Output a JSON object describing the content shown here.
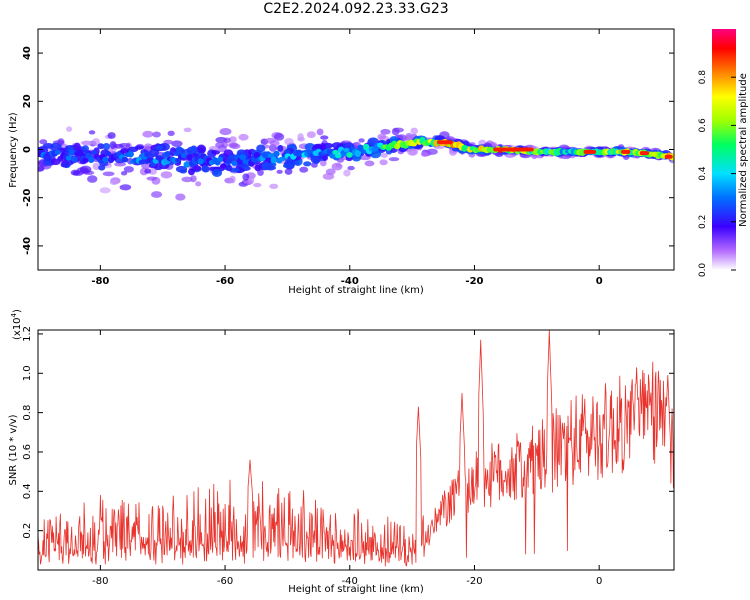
{
  "title": "C2E2.2024.092.23.33.G23",
  "colorbar": {
    "label": "Normalized spectral amplitude",
    "ticks": [
      "0.0",
      "0.2",
      "0.4",
      "0.6",
      "0.8"
    ],
    "range": [
      0,
      1
    ]
  },
  "chart_data": [
    {
      "type": "heatmap",
      "title": "",
      "xlabel": "Height of straight line (km)",
      "ylabel": "Frequency (Hz)",
      "xlim": [
        -90,
        12
      ],
      "ylim": [
        -50,
        50
      ],
      "x_ticks": [
        -80,
        -60,
        -40,
        -20,
        0
      ],
      "y_ticks": [
        -40,
        -20,
        0,
        20,
        40
      ],
      "ridge": {
        "x": [
          -90,
          -80,
          -70,
          -60,
          -50,
          -40,
          -35,
          -30,
          -25,
          -20,
          -15,
          -10,
          -5,
          0,
          5,
          12
        ],
        "y": [
          -2,
          -3,
          -4,
          -5,
          -3,
          -1,
          1,
          3,
          3,
          0,
          0,
          -1,
          -1,
          -1,
          -1,
          -3
        ],
        "spread_hz": [
          6,
          7,
          8,
          8,
          6,
          5,
          4,
          3,
          2,
          2,
          1,
          1,
          1,
          1,
          1,
          1
        ],
        "amplitude": [
          0.3,
          0.3,
          0.35,
          0.3,
          0.4,
          0.45,
          0.55,
          0.75,
          0.85,
          0.7,
          0.95,
          0.6,
          0.55,
          0.7,
          0.8,
          0.85
        ]
      }
    },
    {
      "type": "line",
      "title": "",
      "xlabel": "Height of straight line (km)",
      "ylabel": "SNR (10 * v/v)",
      "scale_label": "(x10",
      "scale_exp": "4",
      "scale_close": ")",
      "xlim": [
        -90,
        12
      ],
      "ylim": [
        0,
        1.22
      ],
      "x_ticks": [
        -80,
        -60,
        -40,
        -20,
        0
      ],
      "y_ticks": [
        "0.2",
        "0.4",
        "0.6",
        "0.8",
        "1.0",
        "1.2"
      ],
      "series_color": "#e8322b",
      "envelope": {
        "x": [
          -90,
          -80,
          -70,
          -60,
          -50,
          -40,
          -32,
          -29,
          -27,
          -25,
          -22,
          -20,
          -15,
          -10,
          -5,
          0,
          5,
          10,
          12
        ],
        "y": [
          0.08,
          0.12,
          0.13,
          0.14,
          0.14,
          0.1,
          0.08,
          0.07,
          0.2,
          0.3,
          0.4,
          0.45,
          0.5,
          0.55,
          0.65,
          0.7,
          0.75,
          0.8,
          0.6
        ]
      },
      "peaks": {
        "x": [
          -56,
          -29,
          -22,
          -19,
          -8,
          6,
          11
        ],
        "y": [
          0.56,
          0.83,
          0.9,
          1.17,
          1.22,
          1.03,
          0.99
        ]
      }
    }
  ]
}
